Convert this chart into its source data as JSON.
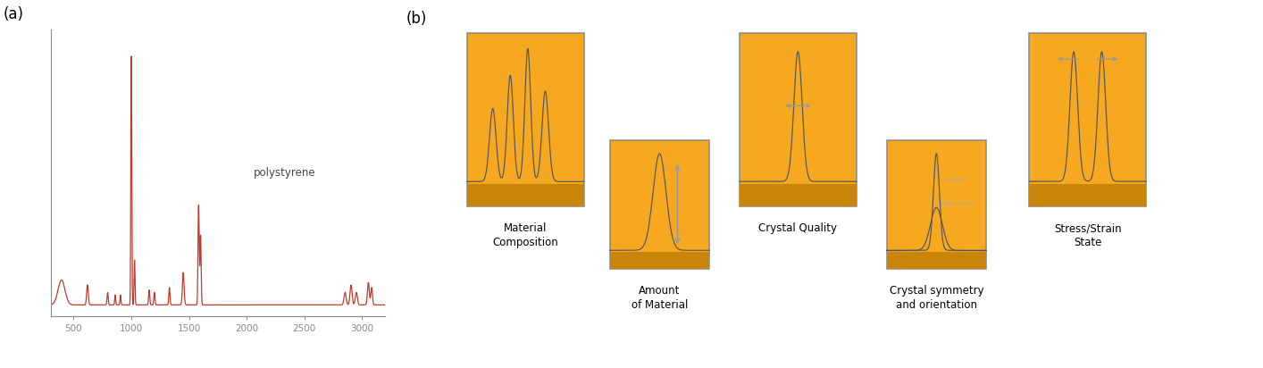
{
  "bg_color": "#ffffff",
  "spectrum_color": "#c0392b",
  "label_a": "(a)",
  "label_b": "(b)",
  "xlim": [
    300,
    3200
  ],
  "xticks": [
    500,
    1000,
    1500,
    2000,
    2500,
    3000
  ],
  "polystyrene_label": "polystyrene",
  "orange_color": "#F5A820",
  "orange_dark": "#C8850A",
  "box_line_color": "#888888",
  "peak_line_color": "#555555",
  "arrow_color": "#999999"
}
